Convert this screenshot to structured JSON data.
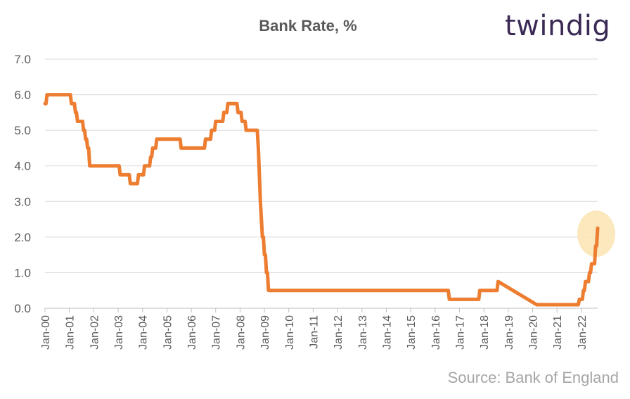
{
  "chart_data": {
    "type": "line",
    "title": "Bank Rate, %",
    "source": "Source: Bank of England",
    "xlabel": "",
    "ylabel": "",
    "ylim": [
      0,
      7
    ],
    "yticks": [
      "0.0",
      "1.0",
      "2.0",
      "3.0",
      "4.0",
      "5.0",
      "6.0",
      "7.0"
    ],
    "xticks": [
      "Jan-00",
      "Jan-01",
      "Jan-02",
      "Jan-03",
      "Jan-04",
      "Jan-05",
      "Jan-06",
      "Jan-07",
      "Jan-08",
      "Jan-09",
      "Jan-10",
      "Jan-11",
      "Jan-12",
      "Jan-13",
      "Jan-14",
      "Jan-15",
      "Jan-16",
      "Jan-17",
      "Jan-18",
      "Jan-19",
      "Jan-20",
      "Jan-21",
      "Jan-22"
    ],
    "grid": true,
    "line_color": "#ED7D31",
    "highlight_color": "#FBE5B6",
    "series": [
      {
        "points": [
          [
            "2000-01",
            5.75
          ],
          [
            "2000-02",
            6.0
          ],
          [
            "2001-01",
            6.0
          ],
          [
            "2001-02",
            5.75
          ],
          [
            "2001-04",
            5.5
          ],
          [
            "2001-05",
            5.25
          ],
          [
            "2001-08",
            5.0
          ],
          [
            "2001-09",
            4.75
          ],
          [
            "2001-10",
            4.5
          ],
          [
            "2001-11",
            4.0
          ],
          [
            "2003-01",
            4.0
          ],
          [
            "2003-02",
            3.75
          ],
          [
            "2003-07",
            3.5
          ],
          [
            "2003-11",
            3.75
          ],
          [
            "2004-02",
            4.0
          ],
          [
            "2004-05",
            4.25
          ],
          [
            "2004-06",
            4.5
          ],
          [
            "2004-08",
            4.75
          ],
          [
            "2005-08",
            4.5
          ],
          [
            "2006-08",
            4.75
          ],
          [
            "2006-11",
            5.0
          ],
          [
            "2007-01",
            5.25
          ],
          [
            "2007-05",
            5.5
          ],
          [
            "2007-07",
            5.75
          ],
          [
            "2007-12",
            5.5
          ],
          [
            "2008-02",
            5.25
          ],
          [
            "2008-04",
            5.0
          ],
          [
            "2008-10",
            4.5
          ],
          [
            "2008-11",
            3.0
          ],
          [
            "2008-12",
            2.0
          ],
          [
            "2009-01",
            1.5
          ],
          [
            "2009-02",
            1.0
          ],
          [
            "2009-03",
            0.5
          ],
          [
            "2016-08",
            0.25
          ],
          [
            "2017-11",
            0.5
          ],
          [
            "2018-08",
            0.75
          ],
          [
            "2020-03",
            0.1
          ],
          [
            "2021-12",
            0.25
          ],
          [
            "2022-02",
            0.5
          ],
          [
            "2022-03",
            0.75
          ],
          [
            "2022-05",
            1.0
          ],
          [
            "2022-06",
            1.25
          ],
          [
            "2022-08",
            1.75
          ],
          [
            "2022-09",
            2.25
          ]
        ]
      }
    ]
  },
  "brand": {
    "logo_text": "twindig"
  }
}
